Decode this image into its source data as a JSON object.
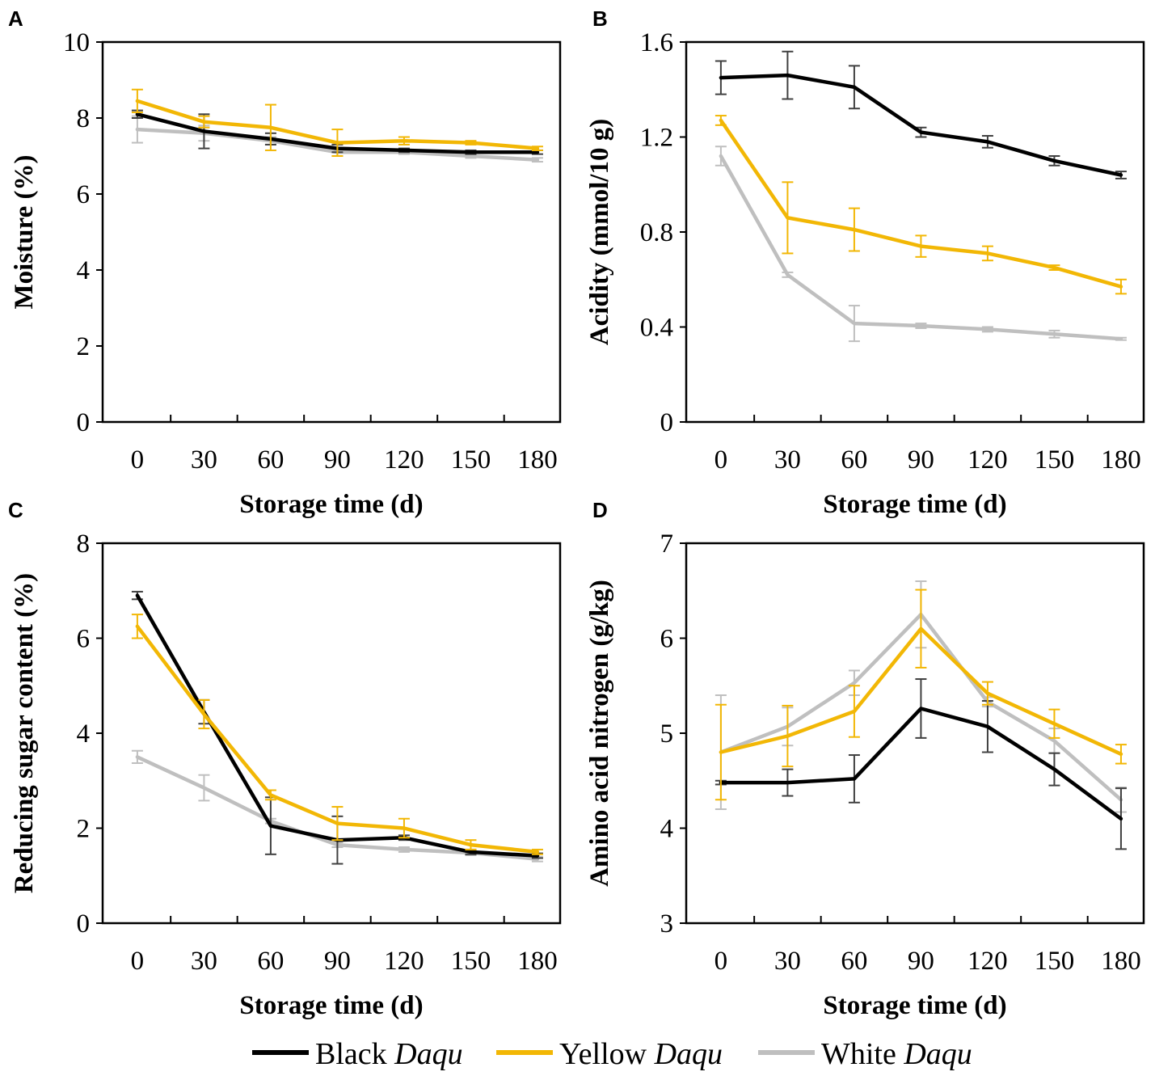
{
  "colors": {
    "black": "#000000",
    "yellow": "#F2B705",
    "white": "#BFBFBF"
  },
  "legend": [
    {
      "name": "Black",
      "italic": "Daqu",
      "color_key": "black"
    },
    {
      "name": "Yellow",
      "italic": "Daqu",
      "color_key": "yellow"
    },
    {
      "name": "White",
      "italic": "Daqu",
      "color_key": "white"
    }
  ],
  "chart_data": [
    {
      "panel": "A",
      "type": "line",
      "xlabel": "Storage time (d)",
      "ylabel": "Moisture (%)",
      "categories": [
        "0",
        "30",
        "60",
        "90",
        "120",
        "150",
        "180"
      ],
      "ylim": [
        0,
        10
      ],
      "yticks": [
        "0",
        "2",
        "4",
        "6",
        "8",
        "10"
      ],
      "series": [
        {
          "name": "Black Daqu",
          "color_key": "black",
          "values": [
            8.1,
            7.65,
            7.45,
            7.2,
            7.15,
            7.1,
            7.1
          ],
          "errors": [
            0.1,
            0.45,
            0.15,
            0.1,
            0.05,
            0.05,
            0.05
          ]
        },
        {
          "name": "Yellow Daqu",
          "color_key": "yellow",
          "values": [
            8.45,
            7.9,
            7.75,
            7.35,
            7.4,
            7.35,
            7.2
          ],
          "errors": [
            0.3,
            0.15,
            0.6,
            0.35,
            0.1,
            0.05,
            0.05
          ]
        },
        {
          "name": "White Daqu",
          "color_key": "white",
          "values": [
            7.7,
            7.6,
            7.4,
            7.1,
            7.1,
            7.0,
            6.9
          ],
          "errors": [
            0.35,
            0.2,
            0.1,
            0.1,
            0.05,
            0.05,
            0.05
          ]
        }
      ]
    },
    {
      "panel": "B",
      "type": "line",
      "xlabel": "Storage time (d)",
      "ylabel": "Acidity (mmol/10 g)",
      "categories": [
        "0",
        "30",
        "60",
        "90",
        "120",
        "150",
        "180"
      ],
      "ylim": [
        0,
        1.6
      ],
      "yticks": [
        "0",
        "0.4",
        "0.8",
        "1.2",
        "1.6"
      ],
      "series": [
        {
          "name": "Black Daqu",
          "color_key": "black",
          "values": [
            1.45,
            1.46,
            1.41,
            1.22,
            1.18,
            1.1,
            1.04
          ],
          "errors": [
            0.07,
            0.1,
            0.09,
            0.02,
            0.025,
            0.02,
            0.015
          ]
        },
        {
          "name": "Yellow Daqu",
          "color_key": "yellow",
          "values": [
            1.27,
            0.86,
            0.81,
            0.74,
            0.71,
            0.65,
            0.57
          ],
          "errors": [
            0.02,
            0.15,
            0.09,
            0.045,
            0.03,
            0.01,
            0.03
          ]
        },
        {
          "name": "White Daqu",
          "color_key": "white",
          "values": [
            1.12,
            0.62,
            0.415,
            0.405,
            0.39,
            0.37,
            0.35
          ],
          "errors": [
            0.04,
            0.01,
            0.075,
            0.01,
            0.01,
            0.015,
            0.005
          ]
        }
      ]
    },
    {
      "panel": "C",
      "type": "line",
      "xlabel": "Storage time (d)",
      "ylabel": "Reducing sugar content (%)",
      "categories": [
        "0",
        "30",
        "60",
        "90",
        "120",
        "150",
        "180"
      ],
      "ylim": [
        0,
        8
      ],
      "yticks": [
        "0",
        "2",
        "4",
        "6",
        "8"
      ],
      "series": [
        {
          "name": "Black Daqu",
          "color_key": "black",
          "values": [
            6.9,
            4.45,
            2.05,
            1.75,
            1.8,
            1.5,
            1.42
          ],
          "errors": [
            0.08,
            0.25,
            0.6,
            0.5,
            0.05,
            0.05,
            0.05
          ]
        },
        {
          "name": "Yellow Daqu",
          "color_key": "yellow",
          "values": [
            6.25,
            4.4,
            2.7,
            2.1,
            2.0,
            1.65,
            1.5
          ],
          "errors": [
            0.25,
            0.3,
            0.1,
            0.35,
            0.2,
            0.1,
            0.05
          ]
        },
        {
          "name": "White Daqu",
          "color_key": "white",
          "values": [
            3.5,
            2.85,
            2.15,
            1.65,
            1.55,
            1.48,
            1.35
          ],
          "errors": [
            0.13,
            0.27,
            0.05,
            0.05,
            0.05,
            0.05,
            0.05
          ]
        }
      ]
    },
    {
      "panel": "D",
      "type": "line",
      "xlabel": "Storage time (d)",
      "ylabel": "Amino acid nitrogen (g/kg)",
      "categories": [
        "0",
        "30",
        "60",
        "90",
        "120",
        "150",
        "180"
      ],
      "ylim": [
        3,
        7
      ],
      "yticks": [
        "3",
        "4",
        "5",
        "6",
        "7"
      ],
      "series": [
        {
          "name": "Black Daqu",
          "color_key": "black",
          "values": [
            4.48,
            4.48,
            4.52,
            5.26,
            5.07,
            4.62,
            4.1
          ],
          "errors": [
            0.02,
            0.14,
            0.25,
            0.31,
            0.27,
            0.17,
            0.32
          ]
        },
        {
          "name": "Yellow Daqu",
          "color_key": "yellow",
          "values": [
            4.8,
            4.97,
            5.23,
            6.1,
            5.42,
            5.1,
            4.78
          ],
          "errors": [
            0.5,
            0.32,
            0.27,
            0.41,
            0.12,
            0.15,
            0.1
          ]
        },
        {
          "name": "White Daqu",
          "color_key": "white",
          "values": [
            4.8,
            5.07,
            5.53,
            6.25,
            5.33,
            4.92,
            4.3
          ],
          "errors": [
            0.6,
            0.2,
            0.13,
            0.35,
            0.05,
            0.13,
            0.13
          ]
        }
      ]
    }
  ]
}
